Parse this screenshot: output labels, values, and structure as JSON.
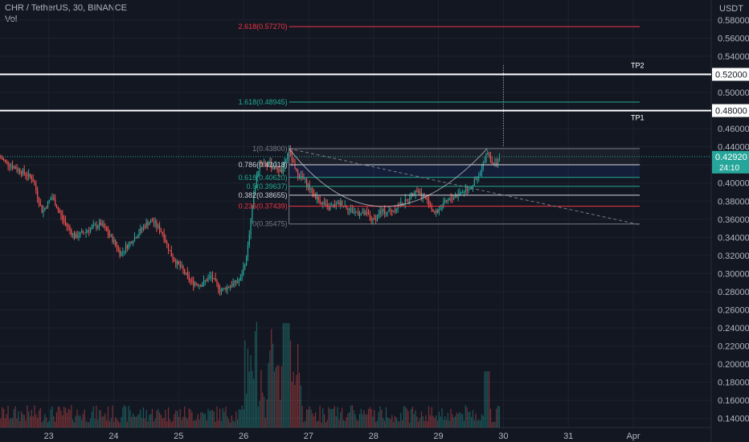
{
  "header": {
    "symbol": "CHR / TetherUS, 30, BINANCE",
    "volume_label": "Vol"
  },
  "colors": {
    "background": "#131722",
    "up": "#26a69a",
    "down": "#ef5350",
    "current_price": "#26a69a",
    "axis_text": "#b2b5be",
    "grid": "#1e222d"
  },
  "chart_data": {
    "type": "candlestick",
    "currency": "USDT",
    "ylim": [
      0.13,
      0.595
    ],
    "y_ticks": [
      "0.58000",
      "0.56000",
      "0.54000",
      "0.52000",
      "0.50000",
      "0.48000",
      "0.46000",
      "0.44000",
      "0.42000",
      "0.40000",
      "0.38000",
      "0.36000",
      "0.34000",
      "0.32000",
      "0.30000",
      "0.28000",
      "0.26000",
      "0.24000",
      "0.22000",
      "0.20000",
      "0.18000",
      "0.16000",
      "0.14000"
    ],
    "x_ticks": [
      {
        "label": "23",
        "x": 23
      },
      {
        "label": "24",
        "x": 24
      },
      {
        "label": "25",
        "x": 25
      },
      {
        "label": "26",
        "x": 26
      },
      {
        "label": "27",
        "x": 27
      },
      {
        "label": "28",
        "x": 28
      },
      {
        "label": "29",
        "x": 29
      },
      {
        "label": "30",
        "x": 30
      },
      {
        "label": "31",
        "x": 31
      },
      {
        "label": "Apr",
        "x": 32
      }
    ],
    "xlim": [
      22.25,
      33.2
    ],
    "current_price": {
      "label": "0.42920",
      "countdown": "24:10",
      "value": 0.4292
    },
    "horizontal_levels": [
      {
        "label": "0.52000",
        "value": 0.52,
        "text": "TP2"
      },
      {
        "label": "0.48000",
        "value": 0.48,
        "text": "TP1"
      }
    ],
    "fib_levels": [
      {
        "label": "2.618(0.57270)",
        "value": 0.5727,
        "color": "#f23645"
      },
      {
        "label": "1.618(0.48945)",
        "value": 0.48945,
        "color": "#22ab94"
      },
      {
        "label": "1(0.43800)",
        "value": 0.438,
        "color": "#787b86"
      },
      {
        "label": "0.786(0.42018)",
        "value": 0.42018,
        "color": "#d1d4dc"
      },
      {
        "label": "0.618(0.40620)",
        "value": 0.4062,
        "color": "#22ab94"
      },
      {
        "label": "0.5(0.39637)",
        "value": 0.39637,
        "color": "#22ab94"
      },
      {
        "label": "0.382(0.38655)",
        "value": 0.38655,
        "color": "#d1d4dc"
      },
      {
        "label": "0.236(0.37439)",
        "value": 0.37439,
        "color": "#f23645"
      },
      {
        "label": "0(0.35475)",
        "value": 0.35475,
        "color": "#787b86"
      }
    ],
    "fib_range_x": [
      26.7,
      32.1
    ],
    "trendline": {
      "x": [
        26.7,
        32.1
      ],
      "y": [
        0.438,
        0.354
      ]
    },
    "price_path": [
      {
        "x": 22.25,
        "y": 0.428
      },
      {
        "x": 22.45,
        "y": 0.418
      },
      {
        "x": 22.6,
        "y": 0.412
      },
      {
        "x": 22.75,
        "y": 0.405
      },
      {
        "x": 22.9,
        "y": 0.368
      },
      {
        "x": 23.05,
        "y": 0.385
      },
      {
        "x": 23.2,
        "y": 0.362
      },
      {
        "x": 23.4,
        "y": 0.34
      },
      {
        "x": 23.6,
        "y": 0.348
      },
      {
        "x": 23.8,
        "y": 0.355
      },
      {
        "x": 24.0,
        "y": 0.336
      },
      {
        "x": 24.1,
        "y": 0.322
      },
      {
        "x": 24.3,
        "y": 0.338
      },
      {
        "x": 24.5,
        "y": 0.355
      },
      {
        "x": 24.6,
        "y": 0.358
      },
      {
        "x": 24.75,
        "y": 0.345
      },
      {
        "x": 24.9,
        "y": 0.318
      },
      {
        "x": 25.05,
        "y": 0.305
      },
      {
        "x": 25.2,
        "y": 0.29
      },
      {
        "x": 25.35,
        "y": 0.288
      },
      {
        "x": 25.5,
        "y": 0.297
      },
      {
        "x": 25.65,
        "y": 0.281
      },
      {
        "x": 25.8,
        "y": 0.287
      },
      {
        "x": 25.95,
        "y": 0.293
      },
      {
        "x": 26.05,
        "y": 0.32
      },
      {
        "x": 26.15,
        "y": 0.385
      },
      {
        "x": 26.25,
        "y": 0.425
      },
      {
        "x": 26.4,
        "y": 0.42
      },
      {
        "x": 26.6,
        "y": 0.412
      },
      {
        "x": 26.7,
        "y": 0.438
      },
      {
        "x": 26.8,
        "y": 0.412
      },
      {
        "x": 26.95,
        "y": 0.402
      },
      {
        "x": 27.1,
        "y": 0.385
      },
      {
        "x": 27.3,
        "y": 0.372
      },
      {
        "x": 27.5,
        "y": 0.378
      },
      {
        "x": 27.7,
        "y": 0.368
      },
      {
        "x": 27.9,
        "y": 0.365
      },
      {
        "x": 28.0,
        "y": 0.358
      },
      {
        "x": 28.1,
        "y": 0.368
      },
      {
        "x": 28.3,
        "y": 0.37
      },
      {
        "x": 28.5,
        "y": 0.38
      },
      {
        "x": 28.65,
        "y": 0.393
      },
      {
        "x": 28.8,
        "y": 0.383
      },
      {
        "x": 28.95,
        "y": 0.366
      },
      {
        "x": 29.1,
        "y": 0.378
      },
      {
        "x": 29.3,
        "y": 0.388
      },
      {
        "x": 29.5,
        "y": 0.396
      },
      {
        "x": 29.65,
        "y": 0.41
      },
      {
        "x": 29.75,
        "y": 0.436
      },
      {
        "x": 29.85,
        "y": 0.418
      },
      {
        "x": 29.95,
        "y": 0.4292
      }
    ]
  }
}
